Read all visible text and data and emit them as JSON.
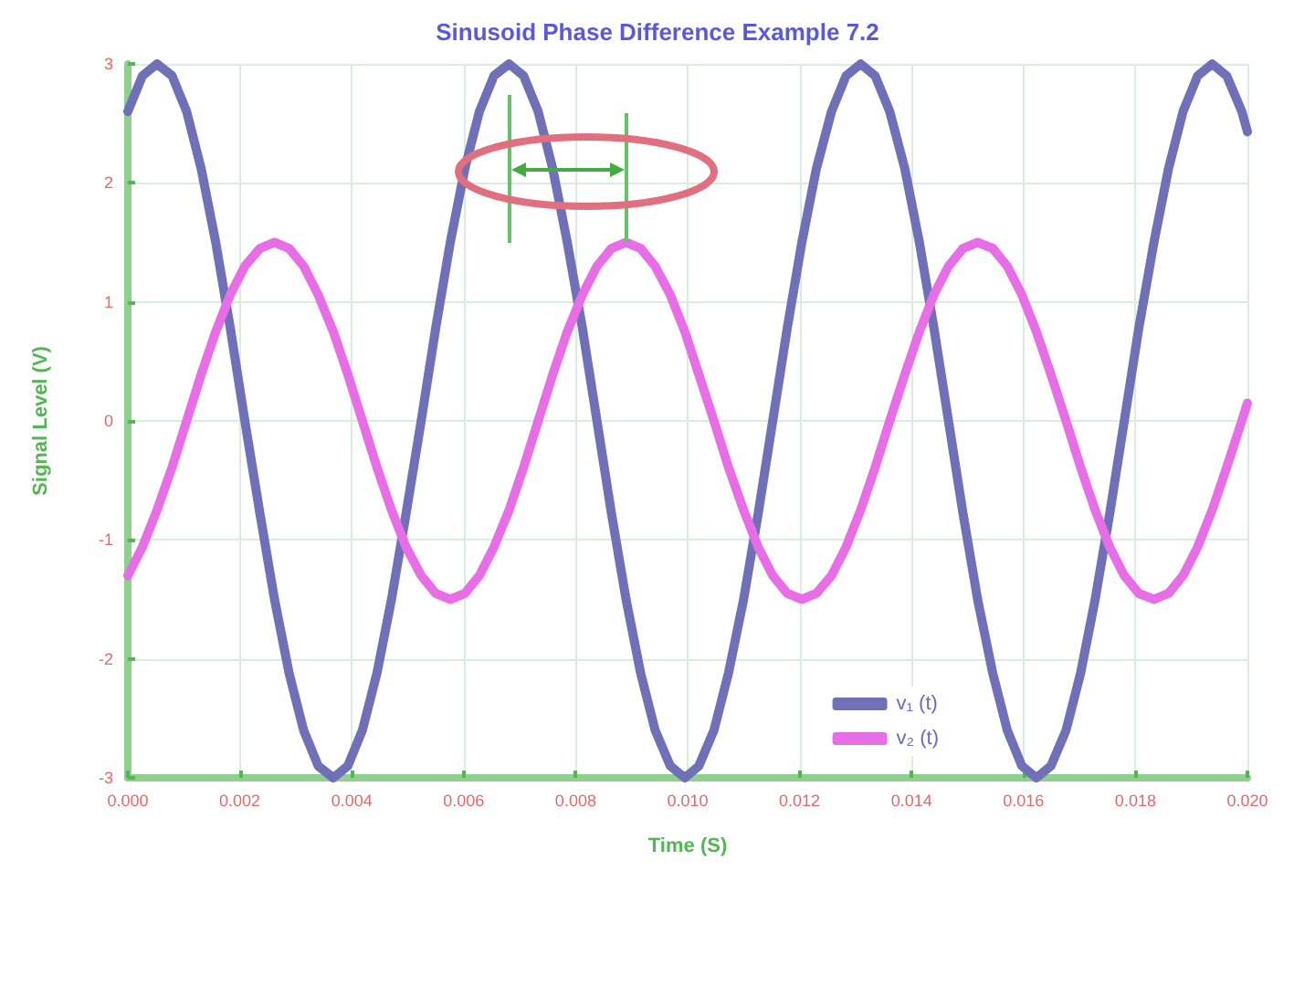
{
  "chart_data": {
    "type": "line",
    "title": "Sinusoid Phase Difference Example 7.2",
    "xlabel": "Time (S)",
    "ylabel": "Signal Level (V)",
    "x": [
      0,
      0.00026,
      0.00052,
      0.00079,
      0.00105,
      0.00131,
      0.00157,
      0.00183,
      0.00209,
      0.00236,
      0.00262,
      0.00288,
      0.00314,
      0.0034,
      0.00367,
      0.00393,
      0.00419,
      0.00445,
      0.00471,
      0.00497,
      0.00524,
      0.0055,
      0.00576,
      0.00602,
      0.00628,
      0.00654,
      0.00681,
      0.00707,
      0.00733,
      0.00759,
      0.00785,
      0.00812,
      0.00838,
      0.00864,
      0.0089,
      0.00916,
      0.00942,
      0.00969,
      0.00995,
      0.0102,
      0.01047,
      0.01073,
      0.011,
      0.01126,
      0.01152,
      0.01178,
      0.01204,
      0.0123,
      0.01257,
      0.01283,
      0.01309,
      0.01335,
      0.01361,
      0.01388,
      0.01414,
      0.0144,
      0.01466,
      0.01492,
      0.01518,
      0.01545,
      0.01571,
      0.01597,
      0.01623,
      0.01649,
      0.01676,
      0.01702,
      0.01728,
      0.01754,
      0.0178,
      0.01806,
      0.01833,
      0.01859,
      0.01885,
      0.01911,
      0.01937,
      0.01963,
      0.0199,
      0.02
    ],
    "series": [
      {
        "name": "v₁ (t)",
        "color": "#7070b8",
        "values": [
          2.6,
          2.9,
          3,
          2.9,
          2.6,
          2.12,
          1.5,
          0.78,
          0,
          -0.78,
          -1.5,
          -2.12,
          -2.6,
          -2.9,
          -3,
          -2.9,
          -2.6,
          -2.12,
          -1.5,
          -0.78,
          0,
          0.78,
          1.5,
          2.12,
          2.6,
          2.9,
          3,
          2.9,
          2.6,
          2.12,
          1.5,
          0.78,
          0,
          -0.78,
          -1.5,
          -2.12,
          -2.6,
          -2.9,
          -3,
          -2.9,
          -2.6,
          -2.12,
          -1.5,
          -0.78,
          0,
          0.78,
          1.5,
          2.12,
          2.6,
          2.9,
          3,
          2.9,
          2.6,
          2.12,
          1.5,
          0.78,
          0,
          -0.78,
          -1.5,
          -2.12,
          -2.6,
          -2.9,
          -3,
          -2.9,
          -2.6,
          -2.12,
          -1.5,
          -0.78,
          0,
          0.78,
          1.5,
          2.12,
          2.6,
          2.9,
          3,
          2.9,
          2.6,
          2.43
        ]
      },
      {
        "name": "v₂ (t)",
        "color": "#e86ee8",
        "values": [
          -1.3,
          -1.06,
          -0.75,
          -0.39,
          0,
          0.39,
          0.75,
          1.06,
          1.3,
          1.45,
          1.5,
          1.45,
          1.3,
          1.06,
          0.75,
          0.39,
          0,
          -0.39,
          -0.75,
          -1.06,
          -1.3,
          -1.45,
          -1.5,
          -1.45,
          -1.3,
          -1.06,
          -0.75,
          -0.39,
          0,
          0.39,
          0.75,
          1.06,
          1.3,
          1.45,
          1.5,
          1.45,
          1.3,
          1.06,
          0.75,
          0.39,
          0,
          -0.39,
          -0.75,
          -1.06,
          -1.3,
          -1.45,
          -1.5,
          -1.45,
          -1.3,
          -1.06,
          -0.75,
          -0.39,
          0,
          0.39,
          0.75,
          1.06,
          1.3,
          1.45,
          1.5,
          1.45,
          1.3,
          1.06,
          0.75,
          0.39,
          0,
          -0.39,
          -0.75,
          -1.06,
          -1.3,
          -1.45,
          -1.5,
          -1.45,
          -1.3,
          -1.06,
          -0.75,
          -0.39,
          0,
          0.15
        ]
      }
    ],
    "xlim": [
      0,
      0.02
    ],
    "xticks": [
      {
        "value": 0,
        "label": "0.000"
      },
      {
        "value": 0.002,
        "label": "0.002"
      },
      {
        "value": 0.004,
        "label": "0.004"
      },
      {
        "value": 0.006,
        "label": "0.006"
      },
      {
        "value": 0.008,
        "label": "0.008"
      },
      {
        "value": 0.01,
        "label": "0.010"
      },
      {
        "value": 0.012,
        "label": "0.012"
      },
      {
        "value": 0.014,
        "label": "0.014"
      },
      {
        "value": 0.016,
        "label": "0.016"
      },
      {
        "value": 0.018,
        "label": "0.018"
      },
      {
        "value": 0.02,
        "label": "0.020"
      }
    ],
    "ylim": [
      -3,
      3
    ],
    "yticks": [
      -3,
      -2,
      -1,
      0,
      1,
      2,
      3
    ],
    "grid": true,
    "legend": "bottom right",
    "marker": "none",
    "line_style": "solid"
  }
}
